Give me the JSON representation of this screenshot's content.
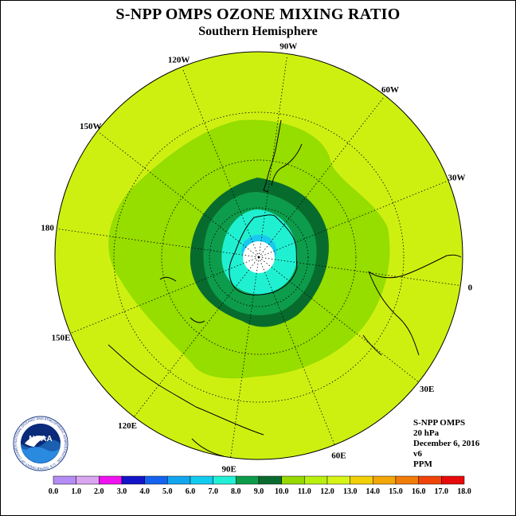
{
  "title": "S-NPP OMPS OZONE MIXING RATIO",
  "subtitle": "Southern Hemisphere",
  "longitude_labels": [
    {
      "label": "90W",
      "angle": -82
    },
    {
      "label": "60W",
      "angle": -52
    },
    {
      "label": "30W",
      "angle": -22
    },
    {
      "label": "0",
      "angle": 8
    },
    {
      "label": "30E",
      "angle": 38
    },
    {
      "label": "60E",
      "angle": 68
    },
    {
      "label": "90E",
      "angle": 98
    },
    {
      "label": "120E",
      "angle": 128
    },
    {
      "label": "150E",
      "angle": 158
    },
    {
      "label": "180",
      "angle": 188
    },
    {
      "label": "150W",
      "angle": 218
    },
    {
      "label": "120W",
      "angle": 248
    }
  ],
  "info": {
    "product": "S-NPP OMPS",
    "level": "20 hPa",
    "date": "December 6, 2016",
    "version": "v6",
    "units": "PPM"
  },
  "logo": {
    "text": "NOAA",
    "ring_text": "NATIONAL OCEANIC AND ATMOSPHERIC ADMINISTRATION · U.S. DEPARTMENT OF COMMERCE"
  },
  "colorbar": {
    "ticks": [
      "0.0",
      "1.0",
      "2.0",
      "3.0",
      "4.0",
      "5.0",
      "6.0",
      "7.0",
      "8.0",
      "9.0",
      "10.0",
      "11.0",
      "12.0",
      "13.0",
      "14.0",
      "15.0",
      "16.0",
      "17.0",
      "18.0"
    ],
    "colors": [
      "#b58cf5",
      "#d9a6f0",
      "#f012f0",
      "#1414c8",
      "#1462f0",
      "#12a6f0",
      "#12ccf0",
      "#22f0d6",
      "#0c9c4a",
      "#0a6b2e",
      "#96d800",
      "#b8f010",
      "#d6f418",
      "#f2d008",
      "#f2a608",
      "#f27c08",
      "#f04408",
      "#e80a0a",
      "#7a4a28"
    ]
  },
  "map_colors": {
    "background": "#cef011",
    "level_11": "#96dd00",
    "level_10": "#086b2e",
    "level_9": "#0d9c4b",
    "level_8": "#20f0d2",
    "level_7": "#18c8ee",
    "no_data": "#ffffff"
  }
}
